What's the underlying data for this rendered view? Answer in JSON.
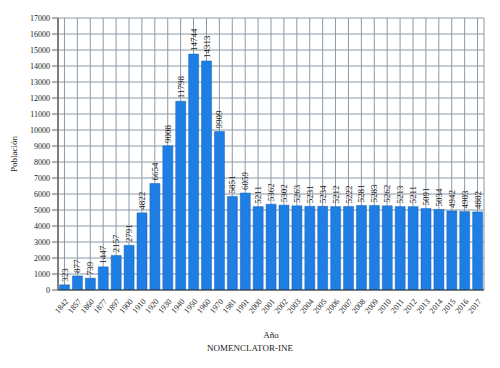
{
  "chart_data": {
    "type": "bar",
    "x_label": "Año",
    "y_label": "Población",
    "source": "NOMENCLATOR-INE",
    "categories": [
      "1842",
      "1857",
      "1860",
      "1877",
      "1897",
      "1900",
      "1910",
      "1920",
      "1930",
      "1940",
      "1950",
      "1960",
      "1970",
      "1981",
      "1991",
      "2000",
      "2001",
      "2002",
      "2003",
      "2004",
      "2005",
      "2006",
      "2007",
      "2008",
      "2009",
      "2010",
      "2011",
      "2012",
      "2013",
      "2014",
      "2015",
      "2016",
      "2017"
    ],
    "values": [
      323,
      877,
      739,
      1447,
      2157,
      2791,
      4822,
      6654,
      9008,
      11798,
      14744,
      14313,
      9909,
      5851,
      6059,
      5211,
      5362,
      5302,
      5263,
      5231,
      5234,
      5212,
      5222,
      5281,
      5283,
      5262,
      5213,
      5211,
      5091,
      5034,
      4942,
      4903,
      4882
    ],
    "color": "#1f7ee3",
    "ylim": [
      0,
      17000
    ],
    "yticks": [
      0,
      1000,
      2000,
      3000,
      4000,
      5000,
      6000,
      7000,
      8000,
      9000,
      10000,
      11000,
      12000,
      13000,
      14000,
      15000,
      16000,
      17000
    ],
    "grid": true,
    "data_labels": true
  }
}
